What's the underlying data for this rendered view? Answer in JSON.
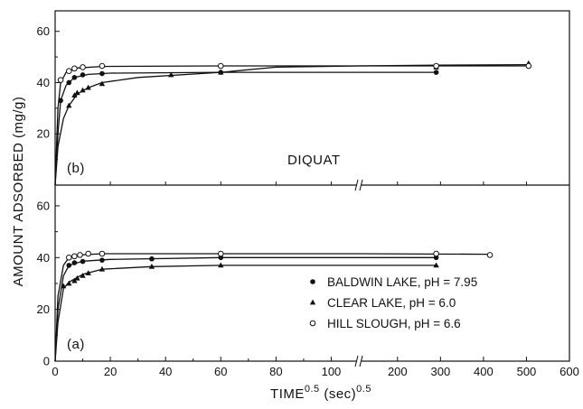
{
  "chart_data": [
    {
      "type": "line",
      "panel_label": "(b)",
      "annotation": "DIQUAT",
      "yticks": [
        20,
        40,
        60
      ],
      "ylim": [
        0,
        68
      ],
      "series": [
        {
          "marker": "filled-circle",
          "points": [
            [
              2,
              33
            ],
            [
              5,
              40
            ],
            [
              7,
              42
            ],
            [
              10,
              43
            ],
            [
              17,
              43.5
            ],
            [
              60,
              44
            ],
            [
              290,
              44
            ]
          ],
          "curve": [
            [
              0,
              0
            ],
            [
              1,
              20
            ],
            [
              2,
              33
            ],
            [
              4,
              39
            ],
            [
              7,
              42
            ],
            [
              12,
              43.2
            ],
            [
              20,
              43.7
            ],
            [
              60,
              44
            ],
            [
              110,
              44
            ],
            [
              290,
              44
            ]
          ]
        },
        {
          "marker": "filled-triangle",
          "points": [
            [
              5,
              31
            ],
            [
              7,
              35
            ],
            [
              8,
              36
            ],
            [
              10,
              37
            ],
            [
              12,
              38
            ],
            [
              17,
              39.5
            ],
            [
              42,
              43
            ],
            [
              60,
              44
            ],
            [
              290,
              46
            ],
            [
              505,
              47.5
            ]
          ],
          "curve": [
            [
              0,
              0
            ],
            [
              1,
              15
            ],
            [
              3,
              26
            ],
            [
              5,
              31
            ],
            [
              8,
              35.5
            ],
            [
              12,
              38
            ],
            [
              17,
              40
            ],
            [
              30,
              42
            ],
            [
              60,
              44
            ],
            [
              80,
              46
            ],
            [
              110,
              46.5
            ],
            [
              290,
              46.8
            ],
            [
              505,
              47
            ]
          ]
        },
        {
          "marker": "open-circle",
          "points": [
            [
              2,
              41
            ],
            [
              5,
              44.5
            ],
            [
              7,
              45.5
            ],
            [
              10,
              46
            ],
            [
              17,
              46.5
            ],
            [
              60,
              46.5
            ],
            [
              290,
              46.5
            ],
            [
              505,
              46.5
            ]
          ],
          "curve": [
            [
              0,
              0
            ],
            [
              1,
              30
            ],
            [
              2,
              40
            ],
            [
              4,
              44
            ],
            [
              8,
              45.7
            ],
            [
              17,
              46.3
            ],
            [
              60,
              46.5
            ],
            [
              110,
              46.5
            ],
            [
              505,
              46.5
            ]
          ]
        }
      ]
    },
    {
      "type": "line",
      "panel_label": "(a)",
      "yticks": [
        0,
        20,
        40,
        60
      ],
      "ylim": [
        0,
        68
      ],
      "legend": [
        {
          "label": "BALDWIN LAKE, pH = 7.95",
          "marker": "filled-circle"
        },
        {
          "label": "CLEAR LAKE, pH = 6.0",
          "marker": "filled-triangle"
        },
        {
          "label": "HILL SLOUGH, pH = 6.6",
          "marker": "open-circle"
        }
      ],
      "series": [
        {
          "marker": "filled-circle",
          "points": [
            [
              5,
              37
            ],
            [
              7,
              38
            ],
            [
              10,
              38.5
            ],
            [
              17,
              39
            ],
            [
              35,
              39.5
            ],
            [
              60,
              40
            ],
            [
              290,
              40
            ]
          ],
          "curve": [
            [
              0,
              0
            ],
            [
              1,
              20
            ],
            [
              3,
              33
            ],
            [
              5,
              37
            ],
            [
              10,
              38.6
            ],
            [
              20,
              39.3
            ],
            [
              60,
              40
            ],
            [
              110,
              40
            ],
            [
              290,
              40
            ]
          ]
        },
        {
          "marker": "filled-triangle",
          "points": [
            [
              3,
              29
            ],
            [
              5,
              30
            ],
            [
              7,
              31
            ],
            [
              8,
              32
            ],
            [
              10,
              33
            ],
            [
              12,
              34
            ],
            [
              17,
              35.5
            ],
            [
              35,
              36.5
            ],
            [
              60,
              37
            ],
            [
              290,
              37
            ]
          ],
          "curve": [
            [
              0,
              0
            ],
            [
              1,
              15
            ],
            [
              3,
              28
            ],
            [
              5,
              30.5
            ],
            [
              10,
              33.5
            ],
            [
              17,
              35.5
            ],
            [
              35,
              36.5
            ],
            [
              60,
              37
            ],
            [
              110,
              37
            ],
            [
              290,
              37
            ]
          ]
        },
        {
          "marker": "open-circle",
          "points": [
            [
              5,
              40
            ],
            [
              7,
              40.5
            ],
            [
              9,
              41
            ],
            [
              12,
              41.5
            ],
            [
              17,
              41.5
            ],
            [
              60,
              41.5
            ],
            [
              290,
              41.5
            ],
            [
              415,
              41
            ]
          ],
          "curve": [
            [
              0,
              0
            ],
            [
              1,
              25
            ],
            [
              3,
              37
            ],
            [
              5,
              40
            ],
            [
              9,
              41
            ],
            [
              17,
              41.5
            ],
            [
              60,
              41.5
            ],
            [
              110,
              41.5
            ],
            [
              415,
              41.3
            ]
          ]
        }
      ]
    }
  ],
  "axes": {
    "ylabel": "AMOUNT  ADSORBED  (mg/g)",
    "xlabel_main": "TIME",
    "xlabel_sup": "0.5",
    "xlabel_unit": "(sec)",
    "xlabel_unit_sup": "0.5",
    "xticks_left": [
      0,
      20,
      40,
      60,
      80,
      100
    ],
    "xticks_right": [
      200,
      300,
      400,
      500,
      600
    ]
  }
}
